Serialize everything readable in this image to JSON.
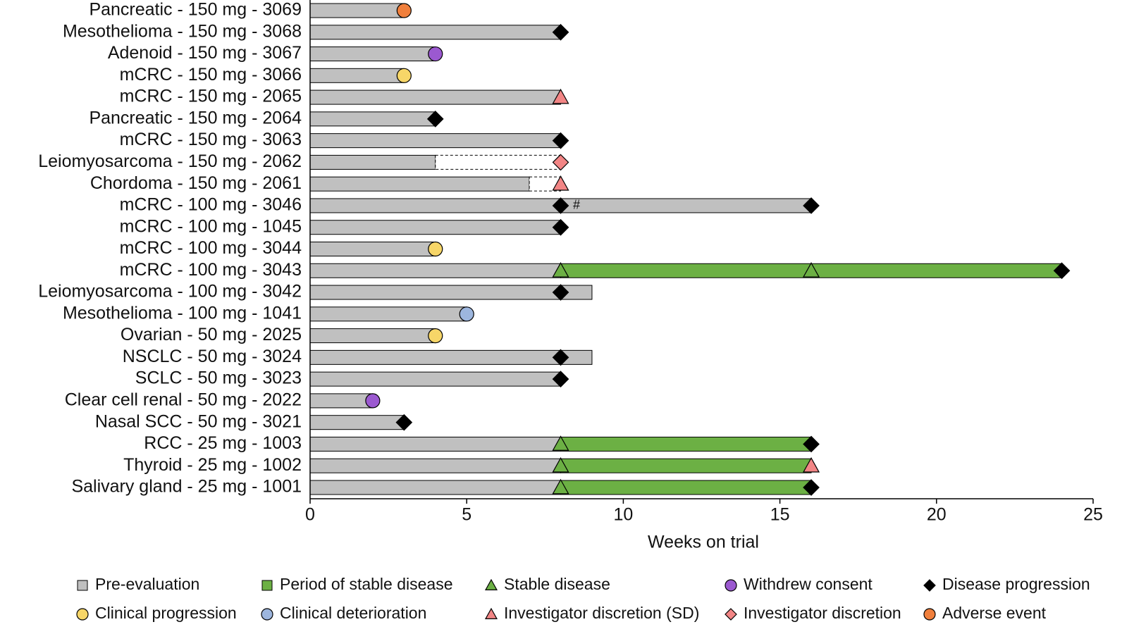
{
  "chart_data": {
    "type": "swimmer",
    "categories": [
      "Pancreatic - 150 mg - 3069",
      "Mesothelioma - 150 mg - 3068",
      "Adenoid - 150 mg - 3067",
      "mCRC - 150 mg - 3066",
      "mCRC - 150 mg - 2065",
      "Pancreatic - 150 mg - 2064",
      "mCRC - 150 mg - 3063",
      "Leiomyosarcoma - 150 mg - 2062",
      "Chordoma - 150 mg - 2061",
      "mCRC - 100 mg - 3046",
      "mCRC - 100 mg - 1045",
      "mCRC - 100 mg - 3044",
      "mCRC - 100 mg - 3043",
      "Leiomyosarcoma - 100 mg - 3042",
      "Mesothelioma - 100 mg - 1041",
      "Ovarian - 50 mg - 2025",
      "NSCLC - 50 mg - 3024",
      "SCLC - 50 mg - 3023",
      "Clear cell renal - 50 mg - 2022",
      "Nasal SCC - 50 mg - 3021",
      "RCC - 25 mg - 1003",
      "Thyroid - 25 mg - 1002",
      "Salivary gland - 25 mg - 1001"
    ],
    "series": [
      {
        "name": "Pre-evaluation",
        "color": "#c0c0c0",
        "values": [
          3,
          8,
          4,
          3,
          8,
          4,
          8,
          4,
          7,
          16,
          8,
          4,
          8,
          9,
          5,
          4,
          9,
          8,
          2,
          3,
          8,
          8,
          8
        ]
      },
      {
        "name": "Period of stable disease",
        "color": "#6cb044",
        "values": [
          null,
          null,
          null,
          null,
          null,
          null,
          null,
          null,
          null,
          null,
          null,
          null,
          16,
          null,
          null,
          null,
          null,
          null,
          null,
          null,
          8,
          8,
          8
        ]
      }
    ],
    "extension_values": [
      null,
      null,
      null,
      null,
      null,
      null,
      null,
      4,
      1,
      null,
      null,
      null,
      null,
      null,
      null,
      null,
      null,
      null,
      null,
      null,
      null,
      null,
      null
    ],
    "markers": [
      {
        "name": "Stable disease",
        "shape": "triangle",
        "color": "#6cb044",
        "values": [
          null,
          null,
          null,
          null,
          null,
          null,
          null,
          null,
          null,
          null,
          null,
          null,
          [
            8,
            16
          ],
          null,
          null,
          null,
          null,
          null,
          null,
          null,
          [
            8
          ],
          [
            8
          ],
          [
            8
          ]
        ]
      },
      {
        "name": "Withdrew consent",
        "shape": "circle",
        "color": "#9b59d0",
        "values": [
          null,
          null,
          [
            4
          ],
          null,
          null,
          null,
          null,
          null,
          null,
          null,
          null,
          null,
          null,
          null,
          null,
          null,
          null,
          null,
          [
            2
          ],
          null,
          null,
          null,
          null
        ]
      },
      {
        "name": "Disease progression",
        "shape": "diamond",
        "color": "#000000",
        "values": [
          null,
          [
            8
          ],
          null,
          null,
          null,
          [
            4
          ],
          [
            8
          ],
          null,
          null,
          [
            8,
            16
          ],
          [
            8
          ],
          null,
          [
            24
          ],
          [
            8
          ],
          null,
          null,
          [
            8
          ],
          [
            8
          ],
          null,
          [
            3
          ],
          [
            16
          ],
          null,
          [
            16
          ]
        ]
      },
      {
        "name": "Clinical progression",
        "shape": "circle",
        "color": "#f7d668",
        "values": [
          null,
          null,
          null,
          [
            3
          ],
          null,
          null,
          null,
          null,
          null,
          null,
          null,
          [
            4
          ],
          null,
          null,
          null,
          [
            4
          ],
          null,
          null,
          null,
          null,
          null,
          null,
          null
        ]
      },
      {
        "name": "Clinical deterioration",
        "shape": "circle",
        "color": "#9db6de",
        "values": [
          null,
          null,
          null,
          null,
          null,
          null,
          null,
          null,
          null,
          null,
          null,
          null,
          null,
          null,
          [
            5
          ],
          null,
          null,
          null,
          null,
          null,
          null,
          null,
          null
        ]
      },
      {
        "name": "Investigator discretion (SD)",
        "shape": "triangle",
        "color": "#f28585",
        "values": [
          null,
          null,
          null,
          null,
          [
            8
          ],
          null,
          null,
          null,
          [
            8
          ],
          null,
          null,
          null,
          null,
          null,
          null,
          null,
          null,
          null,
          null,
          null,
          null,
          [
            16
          ],
          null
        ]
      },
      {
        "name": "Investigator discretion",
        "shape": "diamond",
        "color": "#f28585",
        "values": [
          null,
          null,
          null,
          null,
          null,
          null,
          null,
          [
            8
          ],
          null,
          null,
          null,
          null,
          null,
          null,
          null,
          null,
          null,
          null,
          null,
          null,
          null,
          null,
          null
        ]
      },
      {
        "name": "Adverse event",
        "shape": "circle",
        "color": "#f07f3c",
        "values": [
          [
            3
          ],
          null,
          null,
          null,
          null,
          null,
          null,
          null,
          null,
          null,
          null,
          null,
          null,
          null,
          null,
          null,
          null,
          null,
          null,
          null,
          null,
          null,
          null
        ]
      }
    ],
    "annotations": [
      {
        "text": "#",
        "x": 8.5,
        "category": "mCRC - 100 mg - 3046"
      }
    ],
    "xlabel": "Weeks on trial",
    "xlim": [
      0,
      25
    ],
    "xticks": [
      0,
      5,
      10,
      15,
      20,
      25
    ]
  }
}
